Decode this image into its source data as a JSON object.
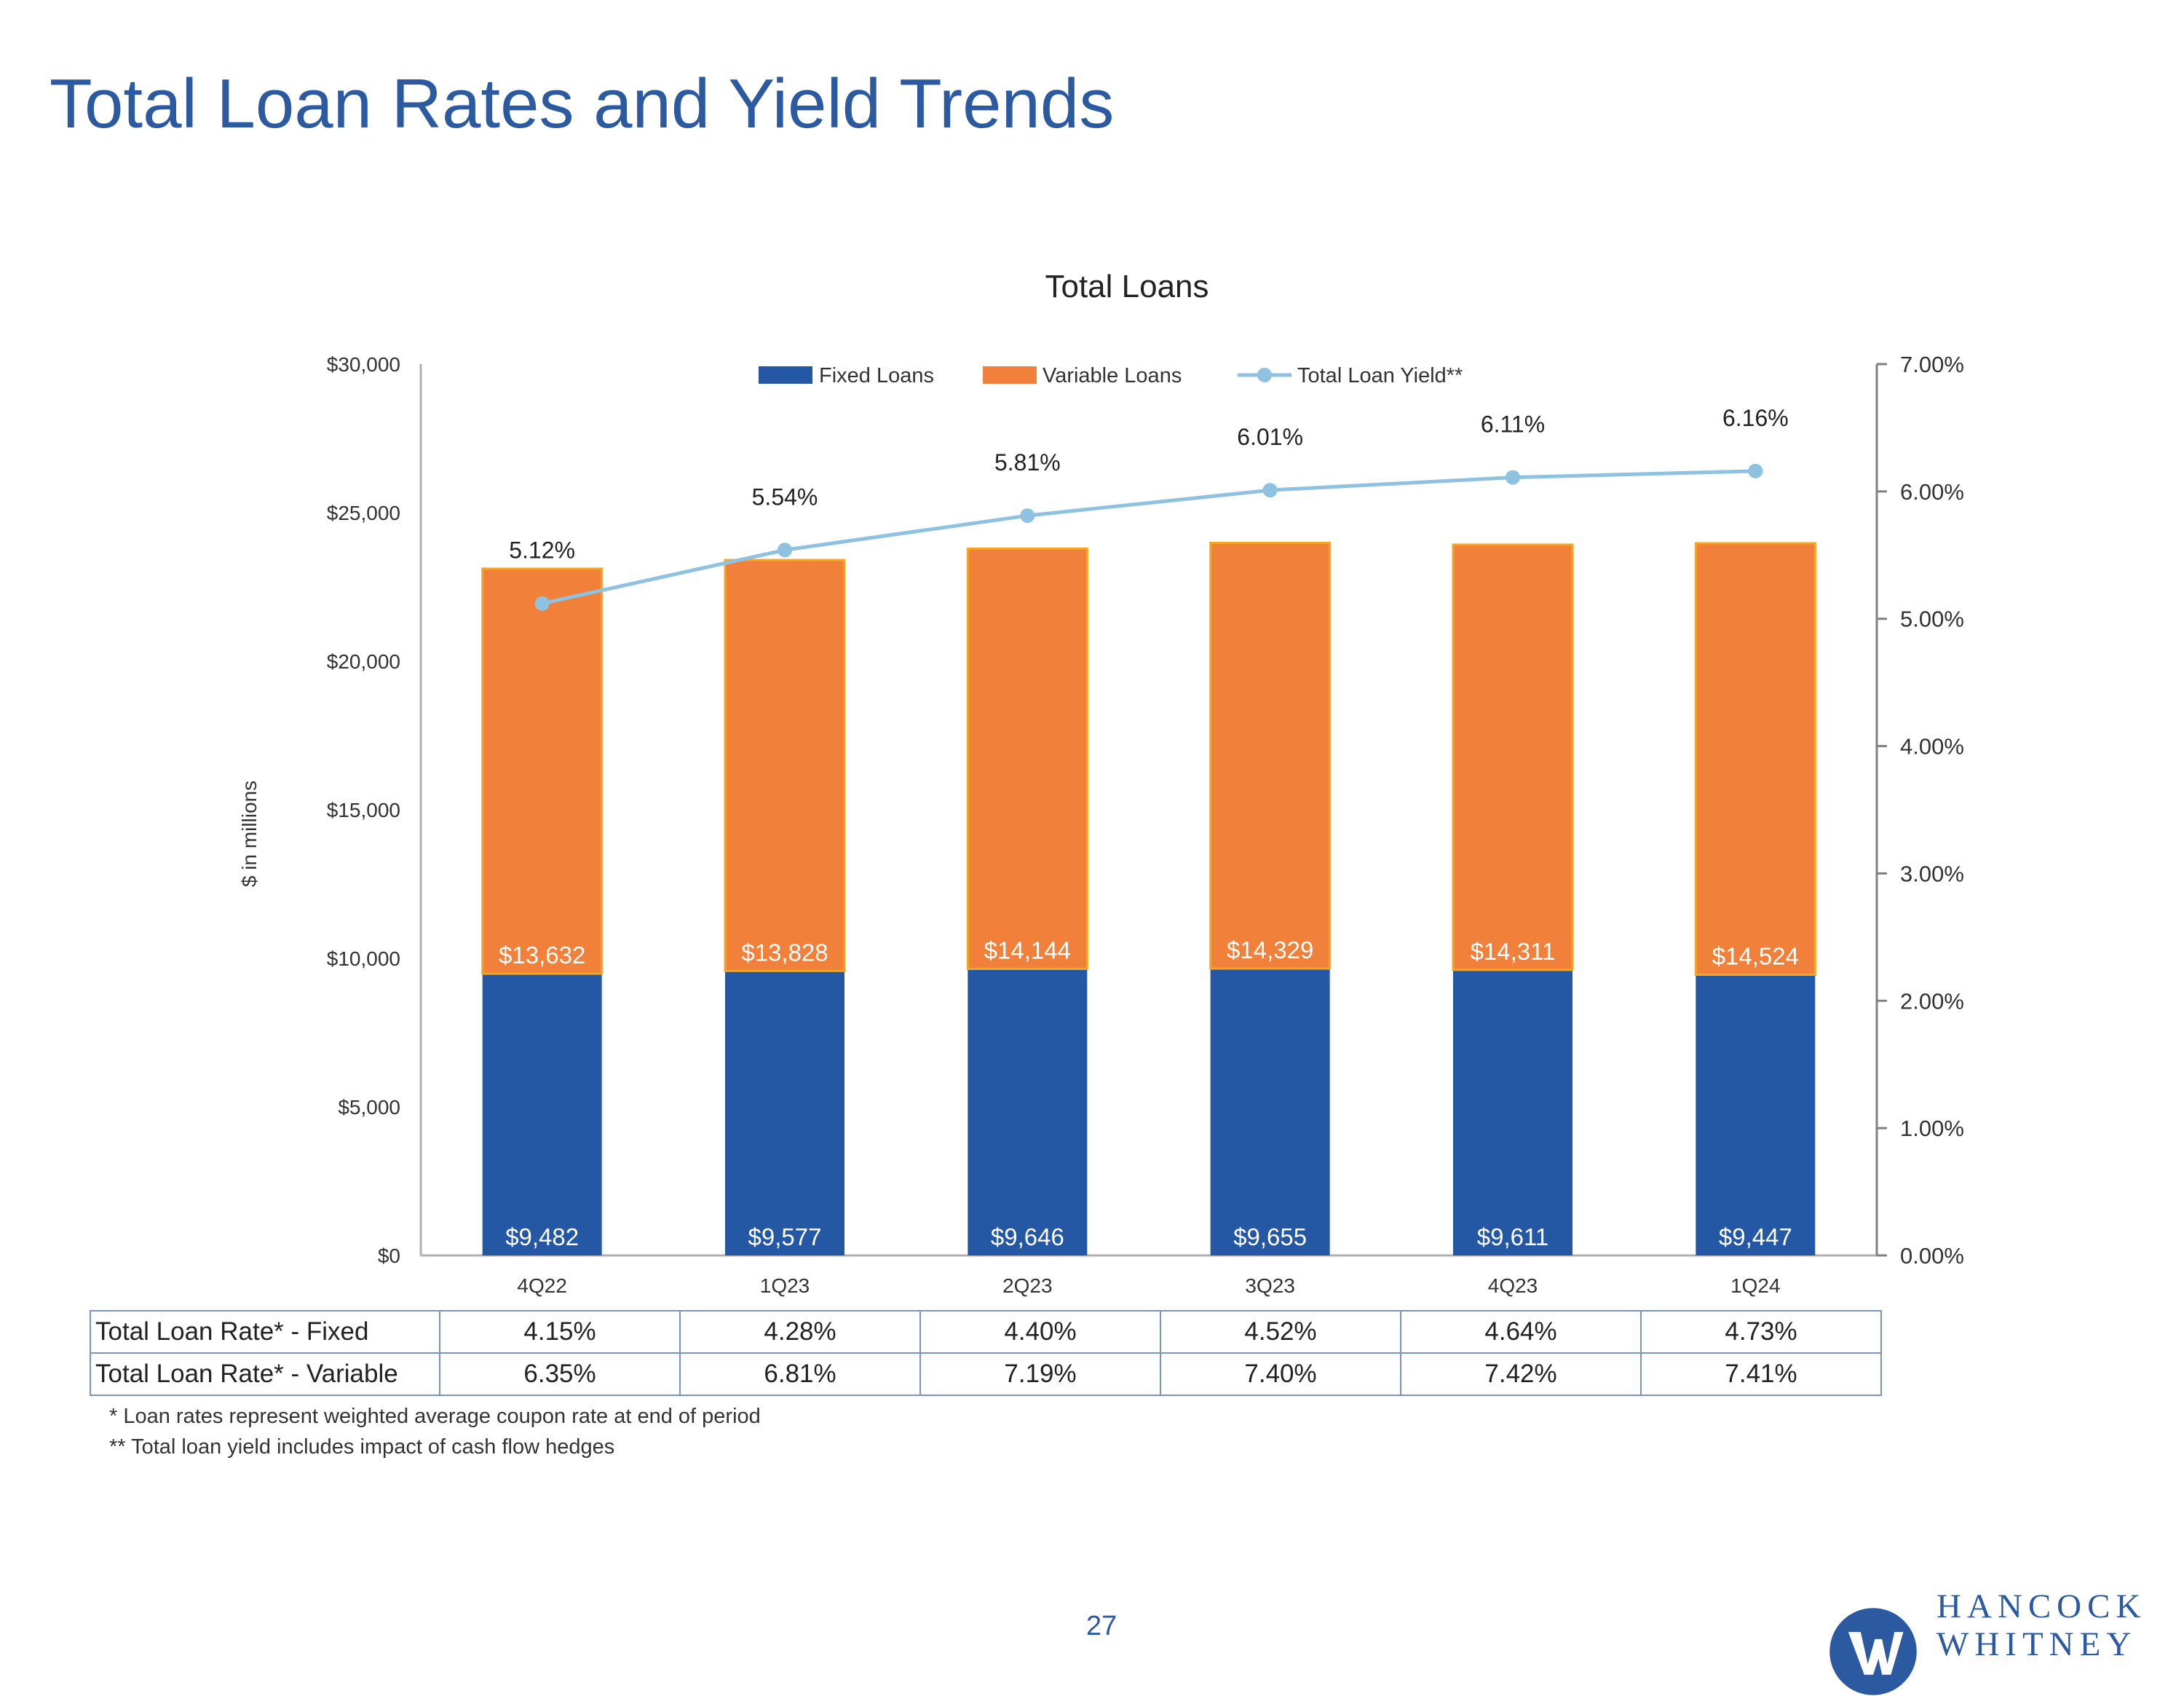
{
  "page": {
    "title": "Total Loan Rates and Yield Trends",
    "page_number": "27"
  },
  "chart_data": {
    "type": "bar",
    "stacked": true,
    "title": "Total Loans",
    "ylabel": "$ in millions",
    "y2label": "",
    "categories": [
      "4Q22",
      "1Q23",
      "2Q23",
      "3Q23",
      "4Q23",
      "1Q24"
    ],
    "ylim": [
      0,
      30000
    ],
    "yticks": [
      0,
      5000,
      10000,
      15000,
      20000,
      25000,
      30000
    ],
    "ytick_labels": [
      "$0",
      "$5,000",
      "$10,000",
      "$15,000",
      "$20,000",
      "$25,000",
      "$30,000"
    ],
    "y2lim": [
      0,
      7
    ],
    "y2ticks": [
      0,
      1,
      2,
      3,
      4,
      5,
      6,
      7
    ],
    "y2tick_labels": [
      "0.00%",
      "1.00%",
      "2.00%",
      "3.00%",
      "4.00%",
      "5.00%",
      "6.00%",
      "7.00%"
    ],
    "legend_position": "top-center",
    "series": [
      {
        "name": "Fixed Loans",
        "type": "bar",
        "axis": "left",
        "color": "#2457a4",
        "values": [
          9482,
          9577,
          9646,
          9655,
          9611,
          9447
        ],
        "labels": [
          "$9,482",
          "$9,577",
          "$9,646",
          "$9,655",
          "$9,611",
          "$9,447"
        ]
      },
      {
        "name": "Variable Loans",
        "type": "bar",
        "axis": "left",
        "color": "#f0803a",
        "values": [
          13632,
          13828,
          14144,
          14329,
          14311,
          14524
        ],
        "labels": [
          "$13,632",
          "$13,828",
          "$14,144",
          "$14,329",
          "$14,311",
          "$14,524"
        ]
      },
      {
        "name": "Total Loan Yield**",
        "type": "line",
        "axis": "right",
        "color": "#8ec2e0",
        "values": [
          5.12,
          5.54,
          5.81,
          6.01,
          6.11,
          6.16
        ],
        "labels": [
          "5.12%",
          "5.54%",
          "5.81%",
          "6.01%",
          "6.11%",
          "6.16%"
        ]
      }
    ]
  },
  "rates_table": {
    "rows": [
      {
        "label": "Total Loan Rate* - Fixed",
        "values": [
          "4.15%",
          "4.28%",
          "4.40%",
          "4.52%",
          "4.64%",
          "4.73%"
        ]
      },
      {
        "label": "Total Loan Rate* - Variable",
        "values": [
          "6.35%",
          "6.81%",
          "7.19%",
          "7.40%",
          "7.42%",
          "7.41%"
        ]
      }
    ]
  },
  "footnotes": [
    "* Loan rates represent weighted average coupon rate at end of period",
    "** Total loan yield includes impact of cash flow hedges"
  ],
  "logo": {
    "line1": "HANCOCK",
    "line2": "WHITNEY",
    "color": "#2c5aa0"
  }
}
